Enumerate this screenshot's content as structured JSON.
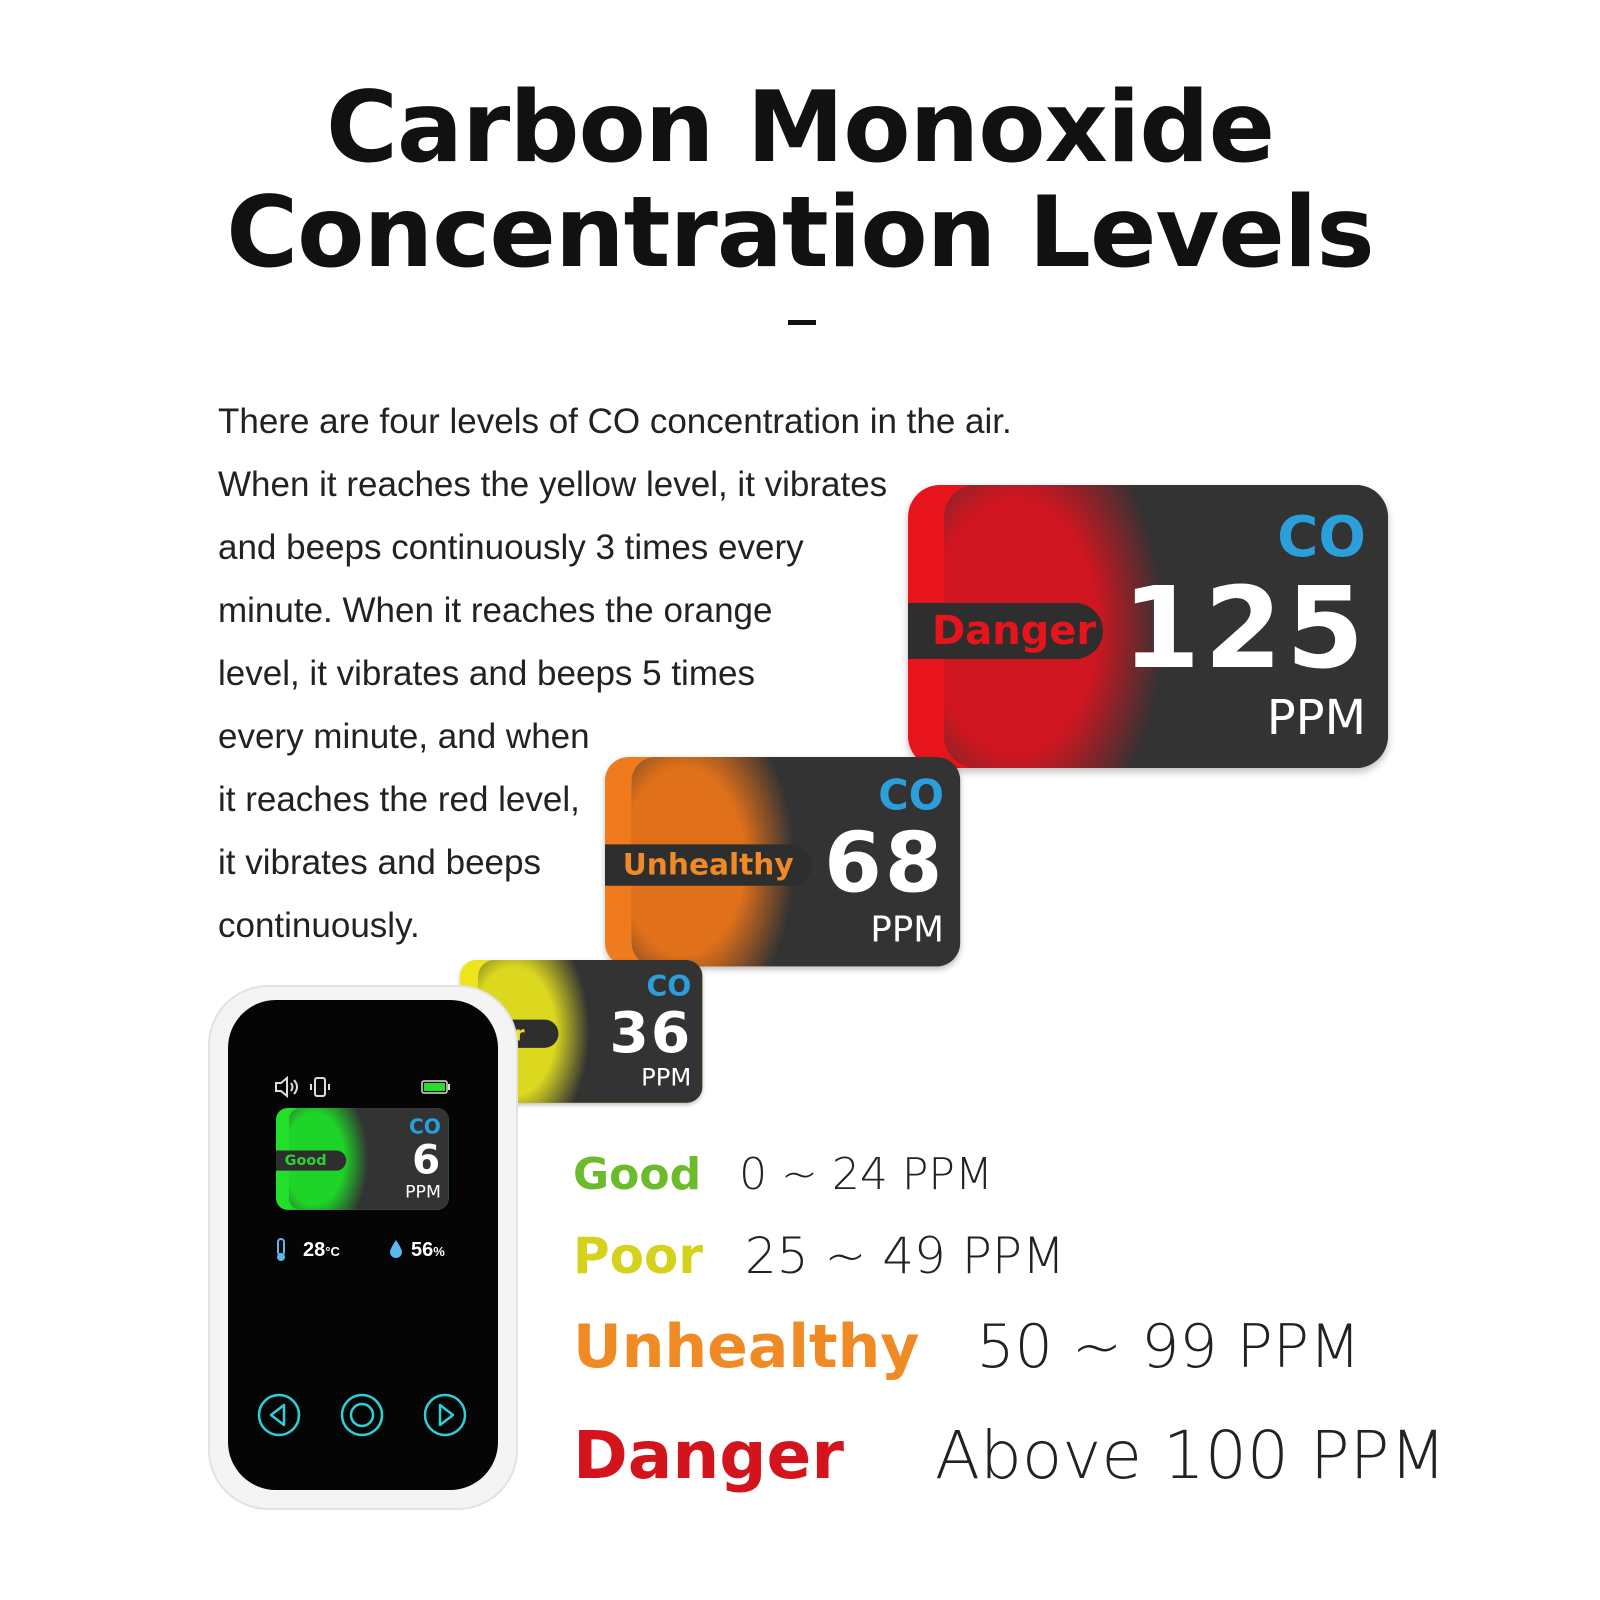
{
  "title": {
    "line1": "Carbon Monoxide",
    "line2": "Concentration Levels"
  },
  "description": [
    "There are four levels of CO concentration in the air.",
    "When it reaches the yellow level, it vibrates",
    "and beeps continuously 3 times every",
    "minute. When it reaches the orange",
    "level, it vibrates and beeps 5 times",
    "every minute, and when",
    "it reaches the red level,",
    "it vibrates and beeps",
    "continuously."
  ],
  "cards": {
    "danger": {
      "label": "Danger",
      "gas": "CO",
      "value": "125",
      "unit": "PPM",
      "color": "#e8141c"
    },
    "unhealthy": {
      "label": "Unhealthy",
      "gas": "CO",
      "value": "68",
      "unit": "PPM",
      "color": "#f07a1e"
    },
    "poor": {
      "label": "Poor",
      "gas": "CO",
      "value": "36",
      "unit": "PPM",
      "color": "#e8e21e"
    },
    "good": {
      "label": "Good",
      "gas": "CO",
      "value": "6",
      "unit": "PPM",
      "color": "#22e02a"
    }
  },
  "device": {
    "temperature": "28",
    "temperature_unit": "°C",
    "humidity": "56",
    "humidity_unit": "%",
    "icons": [
      "speaker-icon",
      "vibrate-icon",
      "battery-icon",
      "thermometer-icon",
      "droplet-icon",
      "left-button-icon",
      "center-button-icon",
      "right-button-icon"
    ],
    "accent": "#2fcfd6"
  },
  "legend": [
    {
      "level": "Good",
      "range": "0 ~ 24 PPM",
      "color": "#6cbb2c"
    },
    {
      "level": "Poor",
      "range": "25 ~ 49 PPM",
      "color": "#d4d21c"
    },
    {
      "level": "Unhealthy",
      "range": "50 ~ 99 PPM",
      "color": "#ef8a24"
    },
    {
      "level": "Danger",
      "range": "Above 100 PPM",
      "color": "#d4141c"
    }
  ]
}
